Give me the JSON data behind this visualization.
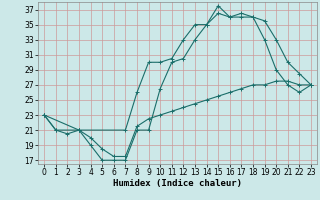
{
  "xlabel": "Humidex (Indice chaleur)",
  "bg_color": "#cce8e8",
  "grid_color": "#aacccc",
  "line_color": "#1a6e6a",
  "xlim": [
    -0.5,
    23.5
  ],
  "ylim": [
    16.5,
    38
  ],
  "xticks": [
    0,
    1,
    2,
    3,
    4,
    5,
    6,
    7,
    8,
    9,
    10,
    11,
    12,
    13,
    14,
    15,
    16,
    17,
    18,
    19,
    20,
    21,
    22,
    23
  ],
  "yticks": [
    17,
    19,
    21,
    23,
    25,
    27,
    29,
    31,
    33,
    35,
    37
  ],
  "series1_x": [
    0,
    1,
    3,
    4,
    5,
    6,
    7,
    8,
    9,
    10,
    11,
    12,
    13,
    14,
    15,
    16,
    17,
    18,
    19,
    20,
    21,
    22,
    23
  ],
  "series1_y": [
    23,
    21,
    21,
    19,
    17,
    17,
    17,
    21,
    21,
    26.5,
    30,
    30.5,
    33,
    35,
    37.5,
    36,
    36,
    36,
    33,
    29,
    27,
    26,
    27
  ],
  "series2_x": [
    0,
    3,
    7,
    8,
    9,
    10,
    11,
    12,
    13,
    14,
    15,
    16,
    17,
    18,
    19,
    20,
    21,
    22,
    23
  ],
  "series2_y": [
    23,
    21,
    21,
    26,
    30,
    30,
    30.5,
    33,
    35,
    35,
    36.5,
    36,
    36.5,
    36,
    35.5,
    33,
    30,
    28.5,
    27
  ],
  "series3_x": [
    0,
    1,
    2,
    3,
    4,
    5,
    6,
    7,
    8,
    9,
    10,
    11,
    12,
    13,
    14,
    15,
    16,
    17,
    18,
    19,
    20,
    21,
    22,
    23
  ],
  "series3_y": [
    23,
    21,
    20.5,
    21,
    20,
    18.5,
    17.5,
    17.5,
    21.5,
    22.5,
    23,
    23.5,
    24,
    24.5,
    25,
    25.5,
    26,
    26.5,
    27,
    27,
    27.5,
    27.5,
    27,
    27
  ],
  "xlabel_fontsize": 6.5,
  "tick_fontsize": 5.5
}
